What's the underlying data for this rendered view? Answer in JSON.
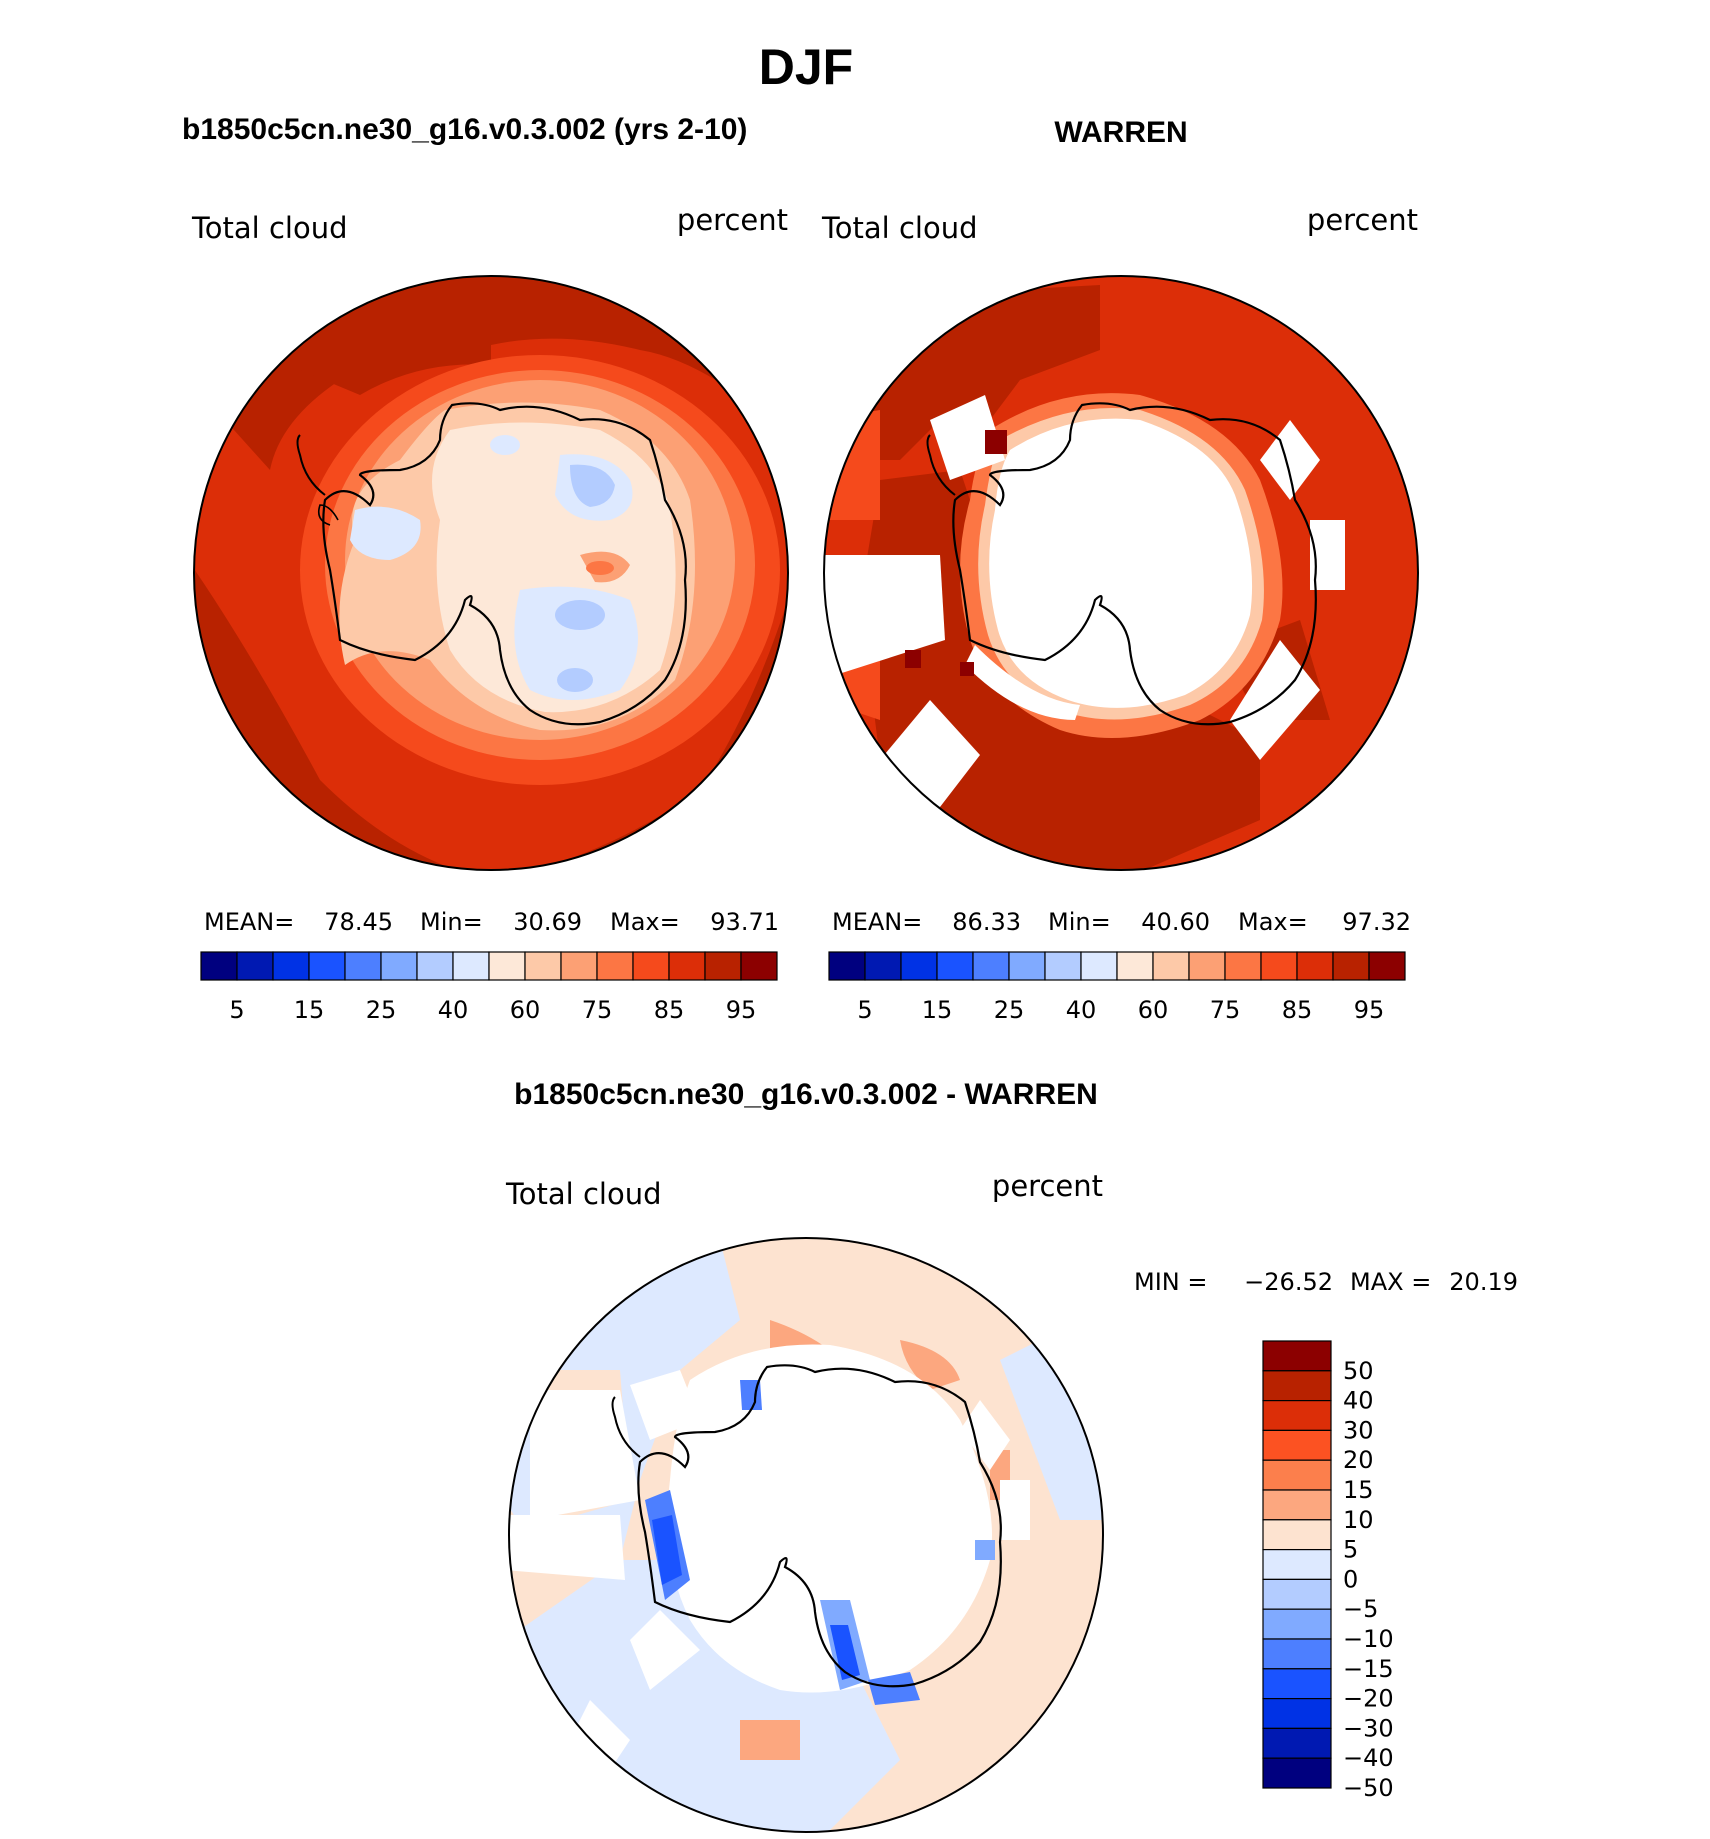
{
  "title": "DJF",
  "panels": [
    {
      "heading": "b1850c5cn.ne30_g16.v0.3.002 (yrs 2-10)",
      "left_label": "Total cloud",
      "right_label": "percent",
      "stats": {
        "mean_label": "MEAN=",
        "mean": "78.45",
        "min_label": "Min=",
        "min": "30.69",
        "max_label": "Max=",
        "max": "93.71"
      }
    },
    {
      "heading": "WARREN",
      "left_label": "Total cloud",
      "right_label": "percent",
      "stats": {
        "mean_label": "MEAN=",
        "mean": "86.33",
        "min_label": "Min=",
        "min": "40.60",
        "max_label": "Max=",
        "max": "97.32"
      }
    }
  ],
  "colorbar_top": {
    "colors": [
      "#00007f",
      "#0019b2",
      "#0032e5",
      "#1a53ff",
      "#4d7fff",
      "#80aaff",
      "#b3ccff",
      "#dde9ff",
      "#fde8d8",
      "#fdc9a8",
      "#fca074",
      "#fc7644",
      "#f54a1c",
      "#dc2e08",
      "#b82200",
      "#8c0000"
    ],
    "labels": [
      "5",
      "15",
      "25",
      "40",
      "60",
      "75",
      "85",
      "95"
    ]
  },
  "difference_panel": {
    "heading": "b1850c5cn.ne30_g16.v0.3.002 - WARREN",
    "left_label": "Total cloud",
    "right_label": "percent",
    "stats": {
      "min_label": "MIN =",
      "min": "−26.52",
      "max_label": "MAX =",
      "max": "20.19"
    }
  },
  "colorbar_diff": {
    "colors": [
      "#8c0000",
      "#b82200",
      "#dc2e08",
      "#fc5222",
      "#fc7f4c",
      "#fca77f",
      "#fde3d0",
      "#dde9ff",
      "#b3ccff",
      "#80aaff",
      "#4d7fff",
      "#1a53ff",
      "#0032e5",
      "#0019b2",
      "#00007f"
    ],
    "labels": [
      "50",
      "40",
      "30",
      "20",
      "15",
      "10",
      "5",
      "0",
      "−5",
      "−10",
      "−15",
      "−20",
      "−30",
      "−40",
      "−50"
    ]
  }
}
